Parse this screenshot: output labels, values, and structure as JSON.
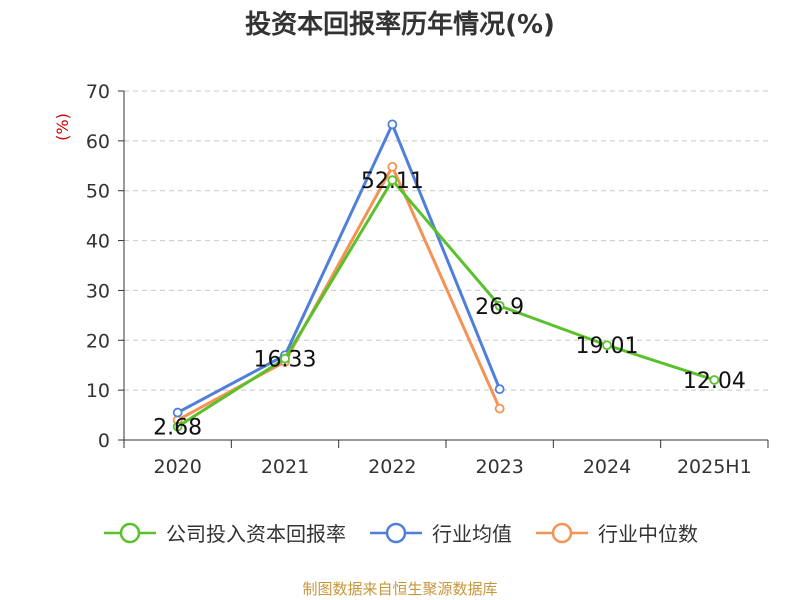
{
  "chart_data": {
    "type": "line",
    "title": "投资本回报率历年情况(%)",
    "ylabel": "(%)",
    "categories": [
      "2020",
      "2021",
      "2022",
      "2023",
      "2024",
      "2025H1"
    ],
    "ylim": [
      0,
      70
    ],
    "yticks": [
      0,
      10,
      20,
      30,
      40,
      50,
      60,
      70
    ],
    "grid": true,
    "legend_position": "bottom",
    "series": [
      {
        "name": "公司投入资本回报率",
        "color": "#5ac12c",
        "values": [
          2.68,
          16.33,
          52.11,
          26.9,
          19.01,
          12.04
        ],
        "labels": [
          "2.68",
          "16.33",
          "52.11",
          "26.9",
          "19.01",
          "12.04"
        ]
      },
      {
        "name": "行业均值",
        "color": "#4f7fdb",
        "values": [
          5.5,
          17.0,
          63.3,
          10.2,
          null,
          null
        ]
      },
      {
        "name": "行业中位数",
        "color": "#f59255",
        "values": [
          4.0,
          15.7,
          54.8,
          6.3,
          null,
          null
        ]
      }
    ]
  },
  "source_text": "制图数据来自恒生聚源数据库"
}
